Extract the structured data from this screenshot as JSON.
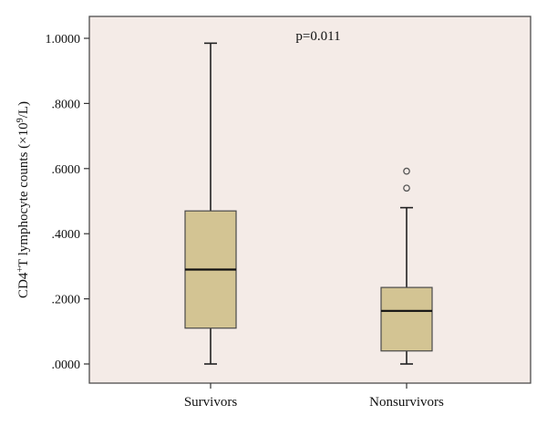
{
  "chart_data": {
    "type": "box",
    "ylabel_parts": [
      "CD4",
      "+",
      "T lymphocyte counts (×10",
      "9",
      "/L)"
    ],
    "annotation": "p=0.011",
    "ylim": [
      -0.05,
      1.05
    ],
    "yticks": [
      0,
      0.2,
      0.4,
      0.6,
      0.8,
      1.0
    ],
    "ytick_labels": [
      ".0000",
      ".2000",
      ".4000",
      ".6000",
      ".8000",
      "1.0000"
    ],
    "grid": false,
    "categories": [
      "Survivors",
      "Nonsurvivors"
    ],
    "boxes": [
      {
        "name": "Survivors",
        "min": 0.0,
        "q1": 0.11,
        "median": 0.29,
        "q3": 0.47,
        "max": 0.985,
        "outliers": []
      },
      {
        "name": "Nonsurvivors",
        "min": 0.0,
        "q1": 0.04,
        "median": 0.163,
        "q3": 0.235,
        "max": 0.48,
        "outliers": [
          0.54,
          0.592
        ]
      }
    ],
    "colors": {
      "box_fill": "#d3c493",
      "box_edge": "#4a4a4a",
      "plot_bg": "#f4ebe7",
      "median": "#111111"
    }
  }
}
